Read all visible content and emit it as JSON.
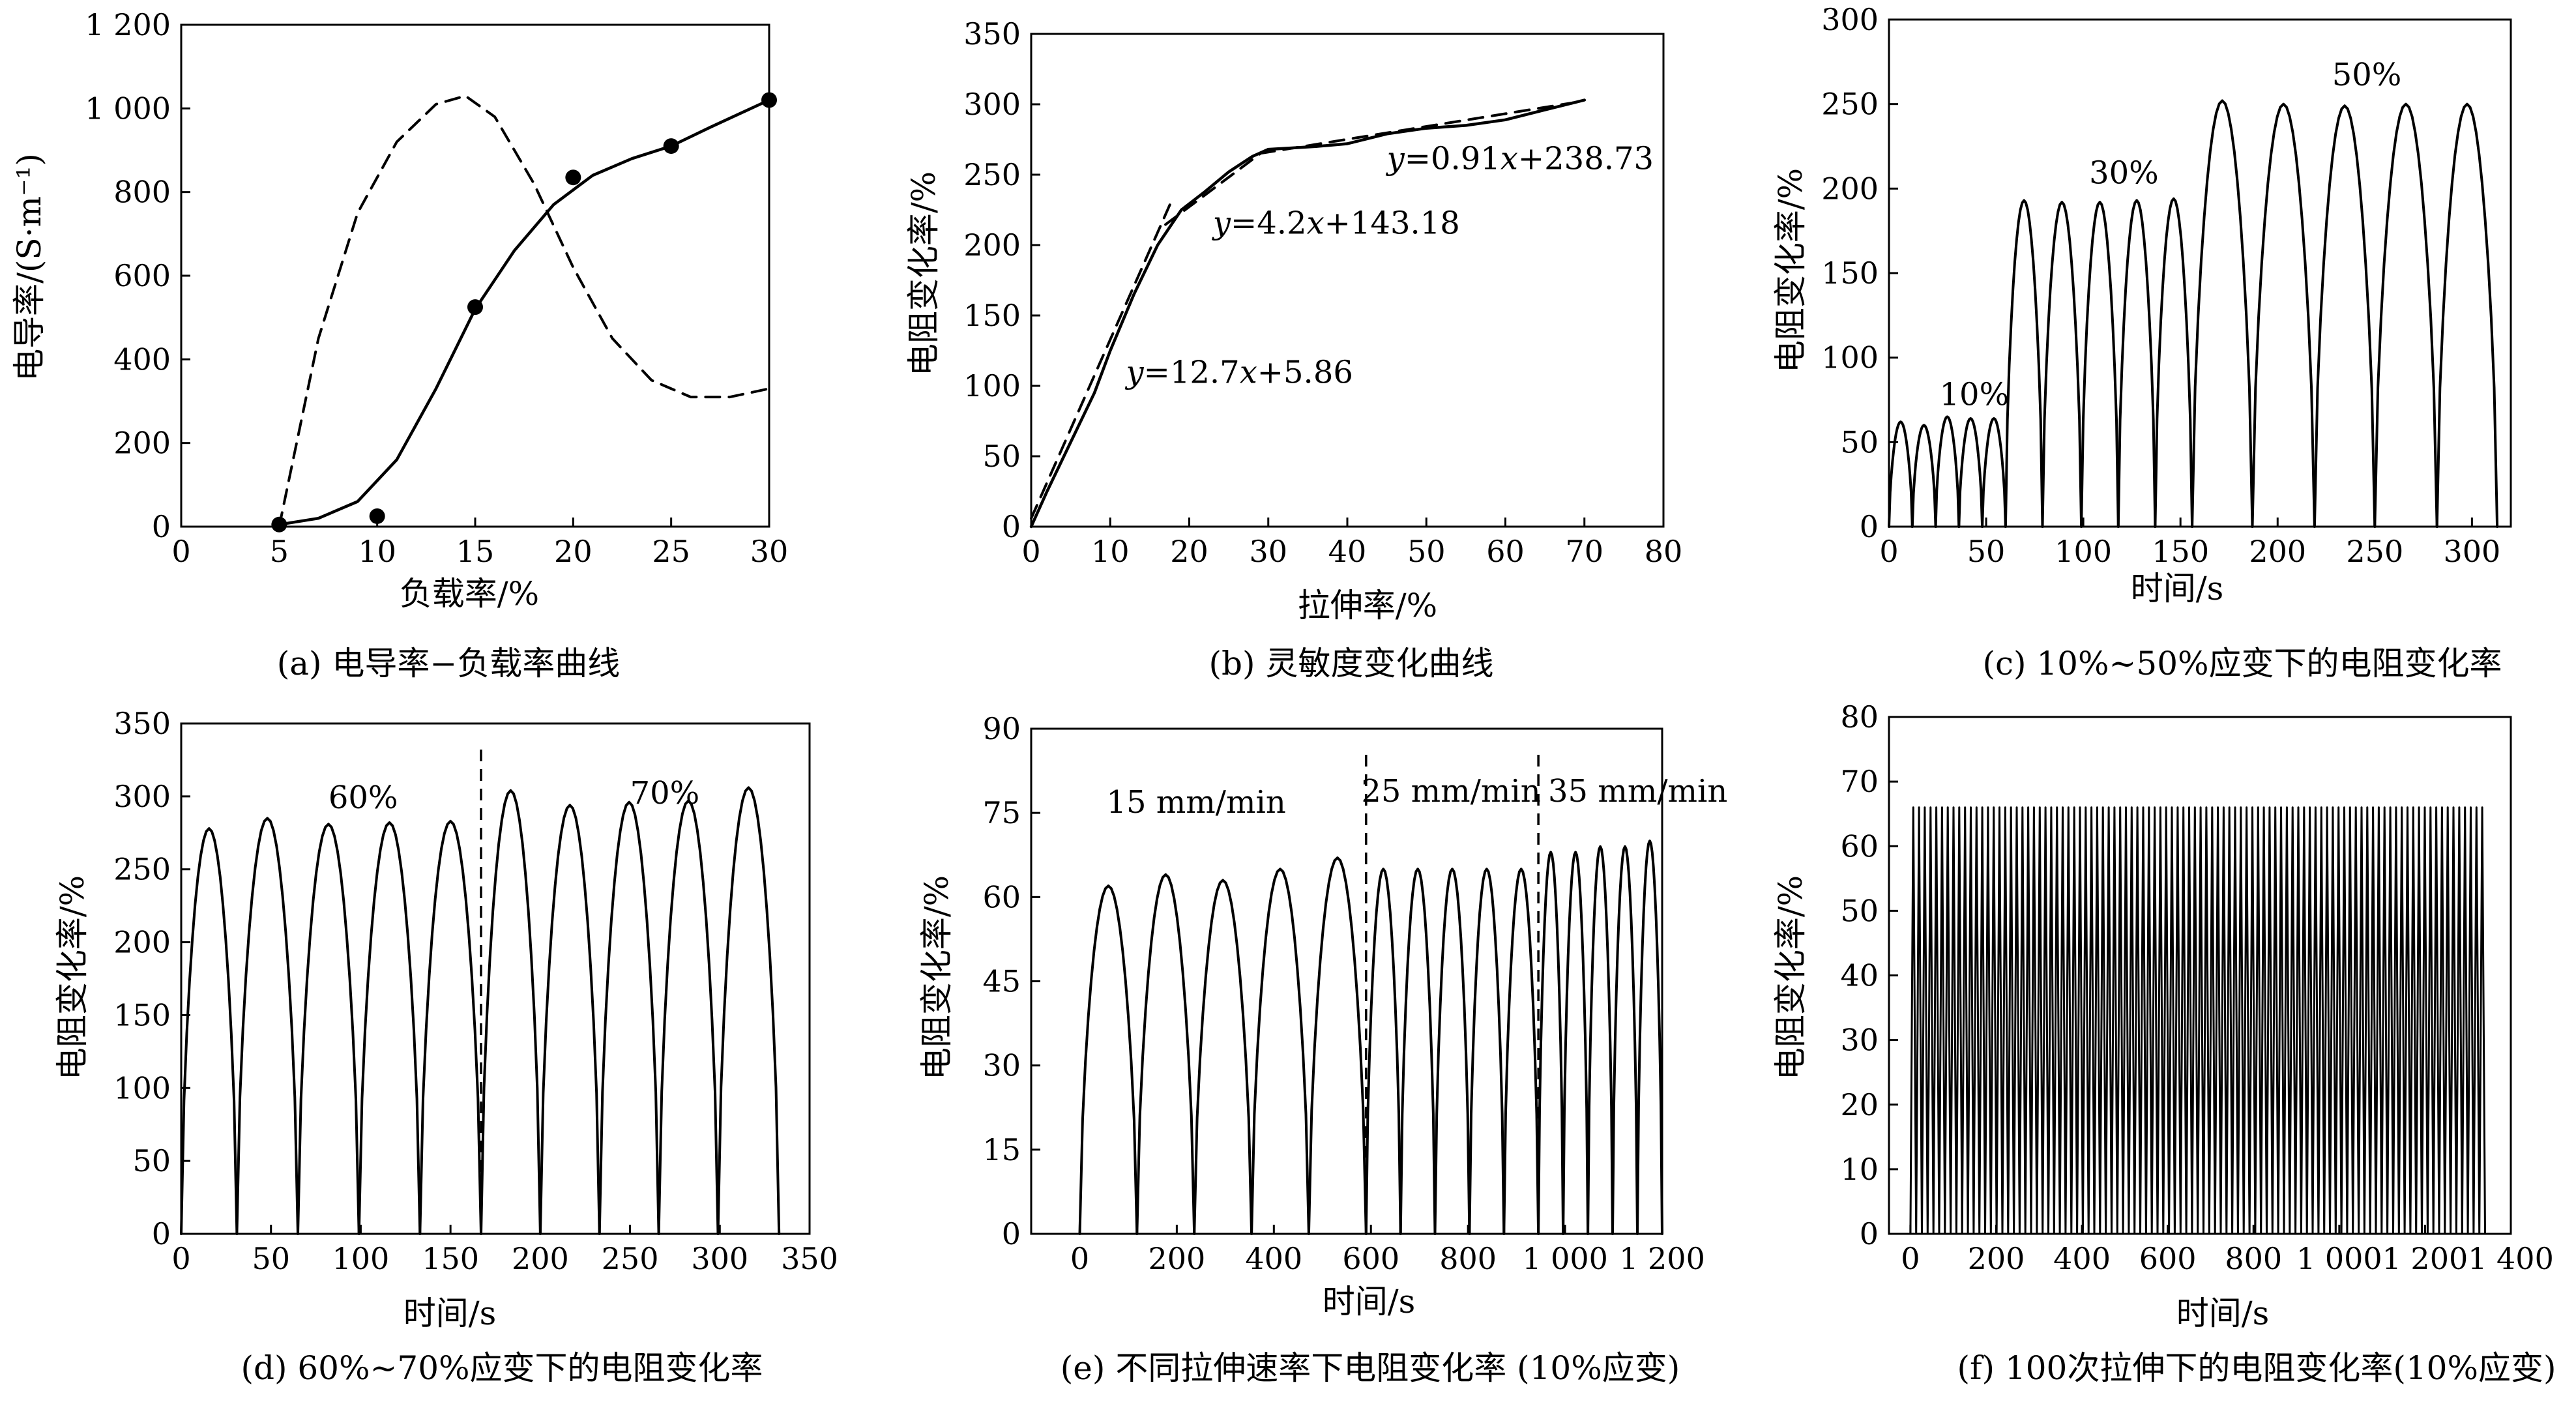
{
  "chart_data": [
    {
      "id": "a",
      "type": "line",
      "caption": "(a) 电导率−负载率曲线",
      "xlabel": "负载率/%",
      "ylabel": "电导率/(S·m⁻¹)",
      "xlim": [
        0,
        30
      ],
      "ylim": [
        0,
        1200
      ],
      "xticks": [
        0,
        5,
        10,
        15,
        20,
        25,
        30
      ],
      "xtick_labels": [
        "0",
        "5",
        "10",
        "15",
        "20",
        "25",
        "30"
      ],
      "yticks": [
        0,
        200,
        400,
        600,
        800,
        1000,
        1200
      ],
      "ytick_labels": [
        "0",
        "200",
        "400",
        "600",
        "800",
        "1 000",
        "1 200"
      ],
      "grid": false,
      "series": [
        {
          "style": "markers",
          "x": [
            5,
            10,
            15,
            20,
            25,
            30
          ],
          "y": [
            5,
            25,
            525,
            835,
            910,
            1020
          ]
        },
        {
          "style": "solid",
          "x": [
            5,
            7,
            9,
            11,
            13,
            15,
            17,
            19,
            21,
            23,
            25,
            27,
            30
          ],
          "y": [
            5,
            20,
            60,
            160,
            330,
            520,
            660,
            770,
            840,
            880,
            910,
            955,
            1020
          ]
        },
        {
          "style": "dashed",
          "x": [
            5,
            7,
            9,
            11,
            13,
            14.5,
            16,
            18,
            20,
            22,
            24,
            26,
            28,
            30
          ],
          "y": [
            0,
            450,
            750,
            920,
            1010,
            1030,
            980,
            820,
            620,
            450,
            350,
            310,
            310,
            330
          ]
        }
      ]
    },
    {
      "id": "b",
      "type": "line",
      "caption": "(b) 灵敏度变化曲线",
      "xlabel": "拉伸率/%",
      "ylabel": "电阻变化率/%",
      "xlim": [
        0,
        80
      ],
      "ylim": [
        0,
        350
      ],
      "xticks": [
        0,
        10,
        20,
        30,
        40,
        50,
        60,
        70,
        80
      ],
      "yticks": [
        0,
        50,
        100,
        150,
        200,
        250,
        300,
        350
      ],
      "grid": false,
      "series": [
        {
          "style": "solid",
          "x": [
            0,
            2,
            5,
            8,
            10,
            13,
            16,
            19,
            22,
            25,
            28,
            30,
            33,
            36,
            40,
            45,
            50,
            55,
            60,
            65,
            70
          ],
          "y": [
            0,
            25,
            60,
            95,
            125,
            165,
            200,
            225,
            238,
            252,
            263,
            268,
            269,
            270,
            272,
            279,
            283,
            285,
            289,
            296,
            303
          ]
        },
        {
          "style": "dashed",
          "x": [
            0,
            18
          ],
          "y": [
            5.86,
            234.46
          ]
        },
        {
          "style": "dashed",
          "x": [
            17,
            29
          ],
          "y": [
            214.58,
            264.98
          ]
        },
        {
          "style": "dashed",
          "x": [
            29,
            70
          ],
          "y": [
            265.12,
            302.43
          ]
        }
      ],
      "annotations": [
        {
          "text_y": "y",
          "text_rest": "=12.7",
          "text_x": "x",
          "text_tail": "+5.86",
          "x": 12,
          "y": 102
        },
        {
          "text_y": "y",
          "text_rest": "=4.2",
          "text_x": "x",
          "text_tail": "+143.18",
          "x": 23,
          "y": 208
        },
        {
          "text_y": "y",
          "text_rest": "=0.91",
          "text_x": "x",
          "text_tail": "+238.73",
          "x": 45,
          "y": 254
        }
      ]
    },
    {
      "id": "c",
      "type": "line",
      "caption": "(c) 10%~50%应变下的电阻变化率",
      "xlabel": "时间/s",
      "ylabel": "电阻变化率/%",
      "xlim": [
        0,
        320
      ],
      "ylim": [
        0,
        300
      ],
      "xticks": [
        0,
        50,
        100,
        150,
        200,
        250,
        300
      ],
      "yticks": [
        0,
        50,
        100,
        150,
        200,
        250,
        300
      ],
      "grid": false,
      "cycles": [
        {
          "start": 0,
          "end": 12,
          "peak": 62
        },
        {
          "start": 12,
          "end": 24,
          "peak": 60
        },
        {
          "start": 24,
          "end": 36,
          "peak": 65
        },
        {
          "start": 36,
          "end": 48,
          "peak": 64
        },
        {
          "start": 48,
          "end": 60,
          "peak": 64
        },
        {
          "start": 60,
          "end": 79,
          "peak": 193
        },
        {
          "start": 79,
          "end": 99,
          "peak": 192
        },
        {
          "start": 99,
          "end": 118,
          "peak": 192
        },
        {
          "start": 118,
          "end": 137,
          "peak": 193
        },
        {
          "start": 137,
          "end": 156,
          "peak": 194
        },
        {
          "start": 156,
          "end": 187,
          "peak": 252
        },
        {
          "start": 187,
          "end": 219,
          "peak": 250
        },
        {
          "start": 219,
          "end": 250,
          "peak": 249
        },
        {
          "start": 250,
          "end": 282,
          "peak": 250
        },
        {
          "start": 282,
          "end": 313,
          "peak": 250
        }
      ],
      "annotations": [
        {
          "text": "10%",
          "x": 26,
          "y": 72
        },
        {
          "text": "30%",
          "x": 103,
          "y": 203
        },
        {
          "text": "50%",
          "x": 228,
          "y": 261
        }
      ]
    },
    {
      "id": "d",
      "type": "line",
      "caption": "(d) 60%~70%应变下的电阻变化率",
      "xlabel": "时间/s",
      "ylabel": "电阻变化率/%",
      "xlim": [
        0,
        350
      ],
      "ylim": [
        0,
        350
      ],
      "xticks": [
        0,
        50,
        100,
        150,
        200,
        250,
        300,
        350
      ],
      "yticks": [
        0,
        50,
        100,
        150,
        200,
        250,
        300,
        350
      ],
      "grid": false,
      "vlines": [
        167
      ],
      "cycles": [
        {
          "start": 0,
          "end": 31,
          "peak": 278
        },
        {
          "start": 31,
          "end": 65,
          "peak": 285
        },
        {
          "start": 65,
          "end": 99,
          "peak": 281
        },
        {
          "start": 99,
          "end": 133,
          "peak": 282
        },
        {
          "start": 133,
          "end": 167,
          "peak": 283
        },
        {
          "start": 167,
          "end": 200,
          "peak": 304
        },
        {
          "start": 200,
          "end": 233,
          "peak": 294
        },
        {
          "start": 233,
          "end": 266,
          "peak": 296
        },
        {
          "start": 266,
          "end": 299,
          "peak": 297
        },
        {
          "start": 299,
          "end": 333,
          "peak": 306
        }
      ],
      "annotations": [
        {
          "text": "60%",
          "x": 82,
          "y": 292
        },
        {
          "text": "70%",
          "x": 250,
          "y": 295
        }
      ]
    },
    {
      "id": "e",
      "type": "line",
      "caption": "(e) 不同拉伸速率下电阻变化率 (10%应变)",
      "xlabel": "时间/s",
      "ylabel": "电阻变化率/%",
      "xlim": [
        -100,
        1200
      ],
      "ylim": [
        0,
        90
      ],
      "xticks": [
        0,
        200,
        400,
        600,
        800,
        1000,
        1200
      ],
      "xtick_labels": [
        "0",
        "200",
        "400",
        "600",
        "800",
        "1 000",
        "1 200"
      ],
      "yticks": [
        0,
        15,
        30,
        45,
        60,
        75,
        90
      ],
      "grid": false,
      "vlines": [
        590,
        945
      ],
      "cycles": [
        {
          "start": 0,
          "end": 118,
          "peak": 62
        },
        {
          "start": 118,
          "end": 236,
          "peak": 64
        },
        {
          "start": 236,
          "end": 354,
          "peak": 63
        },
        {
          "start": 354,
          "end": 472,
          "peak": 65
        },
        {
          "start": 472,
          "end": 590,
          "peak": 67
        },
        {
          "start": 590,
          "end": 661,
          "peak": 65
        },
        {
          "start": 661,
          "end": 732,
          "peak": 65
        },
        {
          "start": 732,
          "end": 803,
          "peak": 65
        },
        {
          "start": 803,
          "end": 874,
          "peak": 65
        },
        {
          "start": 874,
          "end": 945,
          "peak": 65
        },
        {
          "start": 945,
          "end": 996,
          "peak": 68
        },
        {
          "start": 996,
          "end": 1047,
          "peak": 68
        },
        {
          "start": 1047,
          "end": 1098,
          "peak": 69
        },
        {
          "start": 1098,
          "end": 1149,
          "peak": 69
        },
        {
          "start": 1149,
          "end": 1200,
          "peak": 70
        }
      ],
      "annotations": [
        {
          "text": "15 mm/min",
          "x": 55,
          "y": 75
        },
        {
          "text": "25 mm/min",
          "x": 580,
          "y": 77
        },
        {
          "text": "35 mm/min",
          "x": 965,
          "y": 77
        }
      ]
    },
    {
      "id": "f",
      "type": "line",
      "caption": "(f) 100次拉伸下的电阻变化率(10%应变)",
      "xlabel": "时间/s",
      "ylabel": "电阻变化率/%",
      "xlim": [
        -50,
        1400
      ],
      "ylim": [
        0,
        80
      ],
      "xticks": [
        0,
        200,
        400,
        600,
        800,
        1000,
        1200,
        1400
      ],
      "xtick_labels": [
        "0",
        "200",
        "400",
        "600",
        "800",
        "1 000",
        "1 200",
        "1 400"
      ],
      "yticks": [
        0,
        10,
        20,
        30,
        40,
        50,
        60,
        70,
        80
      ],
      "grid": false,
      "oscillation": {
        "start": 0,
        "end": 1340,
        "cycles": 100,
        "min": 0,
        "max": 66
      }
    }
  ]
}
